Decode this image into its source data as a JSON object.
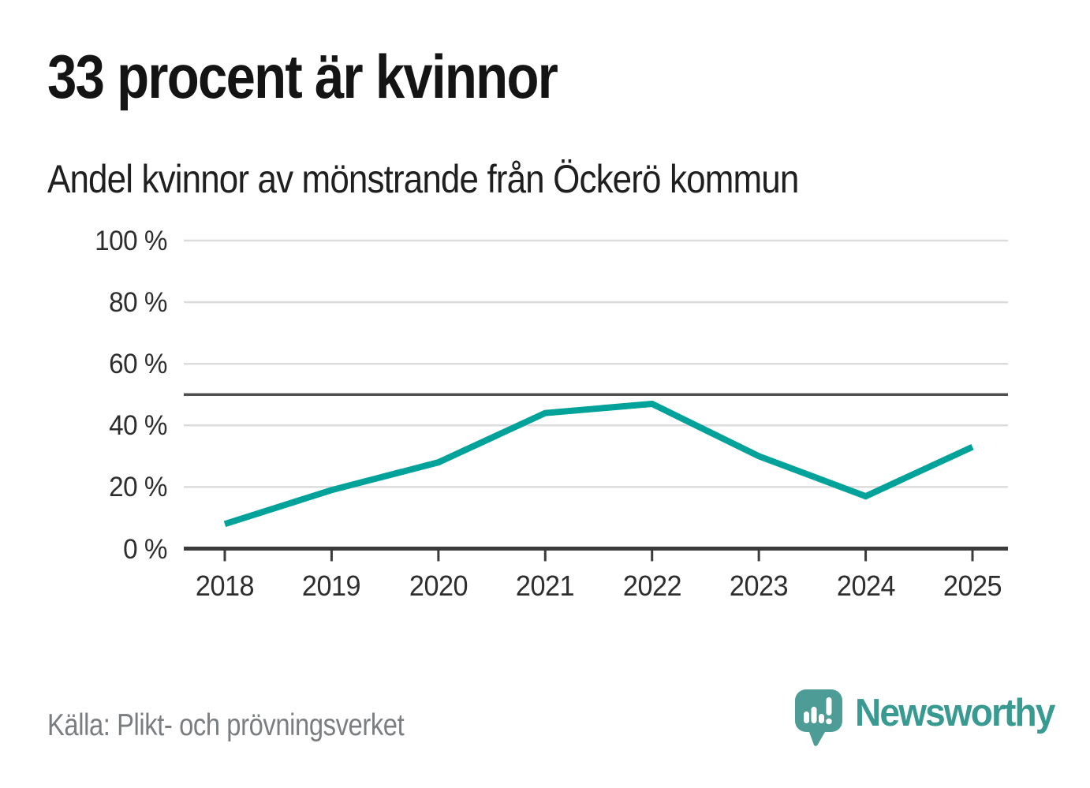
{
  "header": {
    "title": "33 procent är kvinnor",
    "subtitle": "Andel kvinnor av mönstrande från Öckerö kommun"
  },
  "chart_data": {
    "type": "line",
    "title": "33 procent är kvinnor",
    "subtitle": "Andel kvinnor av mönstrande från Öckerö kommun",
    "categories": [
      "2018",
      "2019",
      "2020",
      "2021",
      "2022",
      "2023",
      "2024",
      "2025"
    ],
    "series": [
      {
        "name": "Andel kvinnor av mönstrande",
        "values": [
          8,
          19,
          28,
          44,
          47,
          30,
          17,
          33
        ]
      }
    ],
    "unit": "%",
    "ylim": [
      0,
      100
    ],
    "y_ticks": [
      0,
      20,
      40,
      60,
      80,
      100
    ],
    "y_tick_labels": [
      "0 %",
      "20 %",
      "40 %",
      "60 %",
      "80 %",
      "100 %"
    ],
    "reference_line_value": 50,
    "grid": true,
    "legend": false,
    "xlabel": "",
    "ylabel": ""
  },
  "footer": {
    "source": "Källa: Plikt- och prövningsverket",
    "brand": "Newsworthy"
  },
  "colors": {
    "line_teal": "#00a29a",
    "grid_gray": "#dcdcdc",
    "reference_gray": "#4f4f4f",
    "axis_dark": "#3b3b3b",
    "logo_teal": "#4d9c96",
    "brand_text_teal": "#399a92"
  },
  "icons": {
    "logo": "newsworthy-speech-bubble-bar-chart-icon"
  }
}
